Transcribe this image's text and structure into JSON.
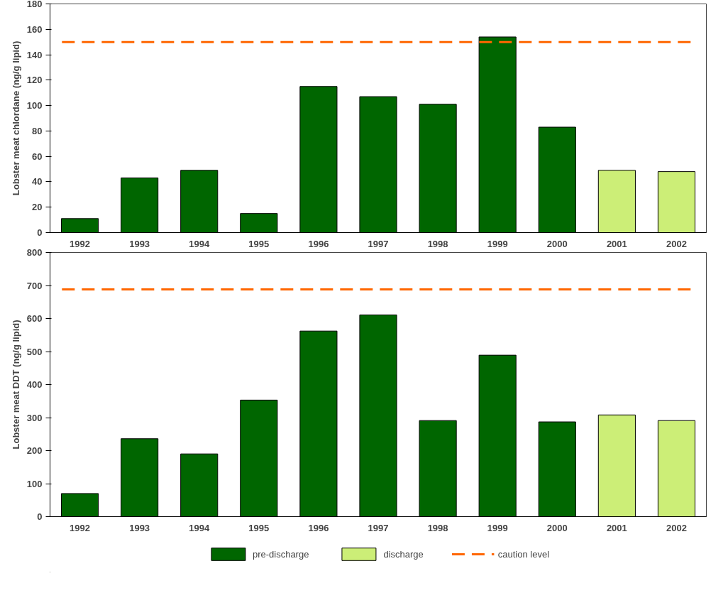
{
  "chart_data": [
    {
      "type": "bar",
      "ylabel": "Lobster meat chlordane (ng/g lipid)",
      "categories": [
        "1992",
        "1993",
        "1994",
        "1995",
        "1996",
        "1997",
        "1998",
        "1999",
        "2000",
        "2001",
        "2002"
      ],
      "stacked": true,
      "series": [
        {
          "color": "#006600",
          "values": [
            11,
            43,
            49,
            15,
            115,
            107,
            101,
            154,
            83,
            null,
            null
          ]
        },
        {
          "color": "#ccee77",
          "values": [
            null,
            null,
            null,
            null,
            null,
            null,
            null,
            null,
            null,
            49,
            48
          ]
        }
      ],
      "ylim": [
        0,
        180
      ],
      "yticks": [
        0,
        20,
        40,
        60,
        80,
        100,
        120,
        140,
        160,
        180
      ],
      "grid": false,
      "legend": false,
      "ref_lines": [
        {
          "axis": "y",
          "value": 150,
          "color": "#ff6600",
          "line_style": "dashed"
        }
      ]
    },
    {
      "type": "bar",
      "ylabel": "Lobster meat DDT (ng/g lipid)",
      "categories": [
        "1992",
        "1993",
        "1994",
        "1995",
        "1996",
        "1997",
        "1998",
        "1999",
        "2000",
        "2001",
        "2002"
      ],
      "stacked": true,
      "series": [
        {
          "name": "pre-discharge",
          "color": "#006600",
          "values": [
            70,
            236,
            190,
            353,
            562,
            611,
            291,
            489,
            287,
            null,
            null
          ]
        },
        {
          "name": "discharge",
          "color": "#ccee77",
          "values": [
            null,
            null,
            null,
            null,
            null,
            null,
            null,
            null,
            null,
            308,
            291
          ]
        }
      ],
      "ylim": [
        0,
        800
      ],
      "yticks": [
        0,
        100,
        200,
        300,
        400,
        500,
        600,
        700,
        800
      ],
      "grid": false,
      "legend": "bottom",
      "ref_lines": [
        {
          "axis": "y",
          "value": 688,
          "label": "caution level",
          "color": "#ff6600",
          "line_style": "dashed"
        }
      ]
    }
  ]
}
